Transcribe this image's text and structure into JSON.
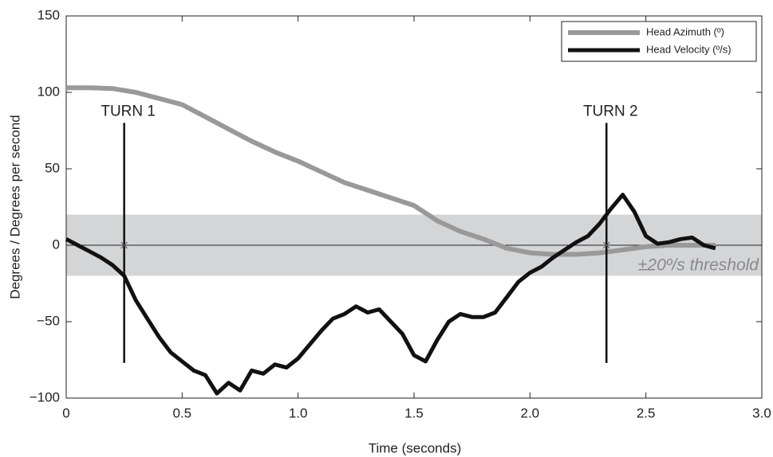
{
  "chart_data": {
    "type": "line",
    "xlabel": "Time (seconds)",
    "ylabel": "Degrees / Degrees per second",
    "xlim": [
      0,
      3
    ],
    "ylim": [
      -100,
      150
    ],
    "xticks": [
      0,
      0.5,
      {
        "value": 1,
        "label": "1.0"
      },
      1.5,
      {
        "value": 2,
        "label": "2.0"
      },
      2.5,
      {
        "value": 3,
        "label": "3.0"
      }
    ],
    "yticks": [
      {
        "value": -100,
        "label": "−100"
      },
      {
        "value": -50,
        "label": "−50"
      },
      0,
      50,
      100,
      150
    ],
    "legend": "upper right",
    "series": [
      {
        "name": "Head Azimuth (º)",
        "color": "#999999",
        "x": [
          0,
          0.1,
          0.2,
          0.3,
          0.4,
          0.5,
          0.6,
          0.7,
          0.8,
          0.9,
          1.0,
          1.1,
          1.2,
          1.3,
          1.4,
          1.5,
          1.6,
          1.7,
          1.8,
          1.9,
          2.0,
          2.1,
          2.2,
          2.3,
          2.4,
          2.5,
          2.6,
          2.7,
          2.8
        ],
        "values": [
          103,
          103,
          102.5,
          100,
          96,
          92,
          84,
          76,
          68,
          61,
          55,
          48,
          41,
          36,
          31,
          26,
          16,
          9,
          4,
          -2,
          -5,
          -6,
          -6,
          -5,
          -3,
          -1,
          0,
          0,
          0
        ]
      },
      {
        "name": "Head Velocity (º/s)",
        "color": "#111111",
        "x": [
          0,
          0.05,
          0.1,
          0.15,
          0.2,
          0.25,
          0.3,
          0.35,
          0.4,
          0.45,
          0.5,
          0.55,
          0.6,
          0.65,
          0.7,
          0.75,
          0.8,
          0.85,
          0.9,
          0.95,
          1.0,
          1.05,
          1.1,
          1.15,
          1.2,
          1.25,
          1.3,
          1.35,
          1.4,
          1.45,
          1.5,
          1.55,
          1.6,
          1.65,
          1.7,
          1.75,
          1.8,
          1.85,
          1.9,
          1.95,
          2.0,
          2.05,
          2.1,
          2.15,
          2.2,
          2.25,
          2.3,
          2.35,
          2.4,
          2.45,
          2.5,
          2.55,
          2.6,
          2.65,
          2.7,
          2.75,
          2.8
        ],
        "values": [
          4,
          0,
          -4,
          -8,
          -13,
          -20,
          -36,
          -48,
          -60,
          -70,
          -76,
          -82,
          -85,
          -97,
          -90,
          -95,
          -82,
          -84,
          -78,
          -80,
          -74,
          -65,
          -56,
          -48,
          -45,
          -40,
          -44,
          -42,
          -50,
          -58,
          -72,
          -76,
          -62,
          -50,
          -45,
          -47,
          -47,
          -44,
          -34,
          -24,
          -18,
          -14,
          -8,
          -3,
          2,
          6,
          14,
          24,
          33,
          22,
          6,
          1,
          2,
          4,
          5,
          0,
          -2
        ]
      }
    ],
    "threshold_band": {
      "range": [
        -20,
        20
      ],
      "label": "±20º/s threshold"
    },
    "annotations": [
      {
        "text": "TURN 1",
        "x": 0.25,
        "span": [
          -77,
          80
        ]
      },
      {
        "text": "TURN 2",
        "x": 2.33,
        "span": [
          -77,
          80
        ]
      }
    ]
  }
}
